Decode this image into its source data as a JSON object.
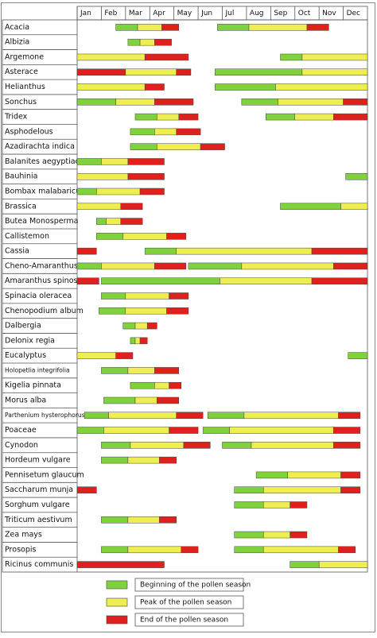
{
  "chart_data": {
    "type": "gantt",
    "months": [
      "Jan",
      "Feb",
      "Mar",
      "Apr",
      "May",
      "Jun",
      "Jul",
      "Aug",
      "Sep",
      "Oct",
      "Nov",
      "Dec"
    ],
    "xlim": [
      0,
      12
    ],
    "legend": [
      {
        "label": "Beginning of the pollen season",
        "color": "#80d23c"
      },
      {
        "label": "Peak of the pollen season",
        "color": "#eeee50"
      },
      {
        "label": "End of the pollen season",
        "color": "#e0201c"
      }
    ],
    "rows": [
      {
        "label": "Acacia",
        "segments": [
          [
            1.6,
            2.5,
            0
          ],
          [
            2.5,
            3.5,
            1
          ],
          [
            3.5,
            4.2,
            2
          ],
          [
            5.8,
            7.1,
            0
          ],
          [
            7.1,
            9.5,
            1
          ],
          [
            9.5,
            10.4,
            2
          ]
        ]
      },
      {
        "label": "Albizia",
        "segments": [
          [
            2.1,
            2.6,
            0
          ],
          [
            2.6,
            3.2,
            1
          ],
          [
            3.2,
            3.9,
            2
          ]
        ]
      },
      {
        "label": "Argemone",
        "segments": [
          [
            0,
            2.8,
            1
          ],
          [
            2.8,
            4.6,
            2
          ],
          [
            8.4,
            9.3,
            0
          ],
          [
            9.3,
            12,
            1
          ]
        ]
      },
      {
        "label": "Asterace",
        "segments": [
          [
            0,
            2.0,
            2
          ],
          [
            2.0,
            4.1,
            1
          ],
          [
            4.1,
            4.7,
            2
          ],
          [
            5.7,
            9.3,
            0
          ],
          [
            9.3,
            12,
            1
          ]
        ]
      },
      {
        "label": "Helianthus",
        "segments": [
          [
            0,
            2.8,
            1
          ],
          [
            2.8,
            3.6,
            2
          ],
          [
            5.7,
            8.2,
            0
          ],
          [
            8.2,
            12,
            1
          ]
        ]
      },
      {
        "label": "Sonchus",
        "segments": [
          [
            0,
            1.6,
            0
          ],
          [
            1.6,
            3.2,
            1
          ],
          [
            3.2,
            4.8,
            2
          ],
          [
            6.8,
            8.3,
            0
          ],
          [
            8.3,
            11.0,
            1
          ],
          [
            11.0,
            12,
            2
          ]
        ]
      },
      {
        "label": "Tridex",
        "segments": [
          [
            2.4,
            3.3,
            0
          ],
          [
            3.3,
            4.2,
            1
          ],
          [
            4.2,
            5.0,
            2
          ],
          [
            7.8,
            9.0,
            0
          ],
          [
            9.0,
            10.6,
            1
          ],
          [
            10.6,
            12,
            2
          ]
        ]
      },
      {
        "label": "Asphodelous",
        "segments": [
          [
            2.2,
            3.2,
            0
          ],
          [
            3.2,
            4.1,
            1
          ],
          [
            4.1,
            5.1,
            2
          ]
        ]
      },
      {
        "label": "Azadirachta  indica",
        "segments": [
          [
            2.2,
            3.3,
            0
          ],
          [
            3.3,
            5.1,
            1
          ],
          [
            5.1,
            6.1,
            2
          ]
        ]
      },
      {
        "label": "Balanites aegyptiaca",
        "segments": [
          [
            0,
            1.0,
            0
          ],
          [
            1.0,
            2.1,
            1
          ],
          [
            2.1,
            3.6,
            2
          ]
        ]
      },
      {
        "label": "Bauhinia",
        "segments": [
          [
            0,
            2.1,
            1
          ],
          [
            2.1,
            3.6,
            2
          ],
          [
            11.1,
            12,
            0
          ]
        ]
      },
      {
        "label": "Bombax malabaricum",
        "segments": [
          [
            0,
            0.8,
            0
          ],
          [
            0.8,
            2.6,
            1
          ],
          [
            2.6,
            3.6,
            2
          ]
        ]
      },
      {
        "label": "Brassica",
        "segments": [
          [
            0,
            1.8,
            1
          ],
          [
            1.8,
            2.7,
            2
          ],
          [
            8.4,
            10.9,
            0
          ],
          [
            10.9,
            12,
            1
          ]
        ]
      },
      {
        "label": "Butea Monosperma",
        "segments": [
          [
            0.8,
            1.2,
            0
          ],
          [
            1.2,
            1.8,
            1
          ],
          [
            1.8,
            2.7,
            2
          ]
        ]
      },
      {
        "label": "Callistemon",
        "segments": [
          [
            0.8,
            1.9,
            0
          ],
          [
            1.9,
            3.7,
            1
          ],
          [
            3.7,
            4.5,
            2
          ]
        ]
      },
      {
        "label": "Cassia",
        "segments": [
          [
            0,
            0.8,
            2
          ],
          [
            2.8,
            4.1,
            0
          ],
          [
            4.1,
            9.7,
            1
          ],
          [
            9.7,
            12,
            2
          ]
        ]
      },
      {
        "label": "Cheno-Amaranthus",
        "segments": [
          [
            0,
            1.0,
            0
          ],
          [
            1.0,
            3.2,
            1
          ],
          [
            3.2,
            4.5,
            2
          ],
          [
            4.6,
            6.8,
            0
          ],
          [
            6.8,
            10.6,
            1
          ],
          [
            10.6,
            12,
            2
          ]
        ]
      },
      {
        "label": "Amaranthus spinosus",
        "segments": [
          [
            0,
            0.9,
            2
          ],
          [
            1.0,
            5.9,
            0
          ],
          [
            5.9,
            9.7,
            1
          ],
          [
            9.7,
            12,
            2
          ]
        ]
      },
      {
        "label": "Spinacia oleracea",
        "segments": [
          [
            1.0,
            2.0,
            0
          ],
          [
            2.0,
            3.8,
            1
          ],
          [
            3.8,
            4.6,
            2
          ]
        ]
      },
      {
        "label": "Chenopodium album",
        "segments": [
          [
            0.9,
            2.0,
            0
          ],
          [
            2.0,
            3.7,
            1
          ],
          [
            3.7,
            4.6,
            2
          ]
        ]
      },
      {
        "label": "Dalbergia",
        "segments": [
          [
            1.9,
            2.4,
            0
          ],
          [
            2.4,
            2.9,
            1
          ],
          [
            2.9,
            3.3,
            2
          ]
        ]
      },
      {
        "label": "Delonix regia",
        "segments": [
          [
            2.2,
            2.4,
            0
          ],
          [
            2.4,
            2.6,
            1
          ],
          [
            2.6,
            2.9,
            2
          ]
        ]
      },
      {
        "label": "Eucalyptus",
        "segments": [
          [
            0,
            1.6,
            1
          ],
          [
            1.6,
            2.3,
            2
          ],
          [
            11.2,
            12,
            0
          ]
        ]
      },
      {
        "label": "Holopetlia integrifolia",
        "segments": [
          [
            1.0,
            2.1,
            0
          ],
          [
            2.1,
            3.2,
            1
          ],
          [
            3.2,
            4.2,
            2
          ]
        ]
      },
      {
        "label": "Kigelia pinnata",
        "segments": [
          [
            2.2,
            3.2,
            0
          ],
          [
            3.2,
            3.8,
            1
          ],
          [
            3.8,
            4.3,
            2
          ]
        ]
      },
      {
        "label": "Morus alba",
        "segments": [
          [
            1.1,
            2.4,
            0
          ],
          [
            2.4,
            3.3,
            1
          ],
          [
            3.3,
            4.2,
            2
          ]
        ]
      },
      {
        "label": "Parthenium hysterophorus",
        "segments": [
          [
            0.3,
            1.3,
            0
          ],
          [
            1.3,
            4.1,
            1
          ],
          [
            4.1,
            5.2,
            2
          ],
          [
            5.4,
            6.9,
            0
          ],
          [
            6.9,
            10.8,
            1
          ],
          [
            10.8,
            11.7,
            2
          ]
        ]
      },
      {
        "label": "Poaceae",
        "segments": [
          [
            0,
            1.1,
            0
          ],
          [
            1.1,
            3.8,
            1
          ],
          [
            3.8,
            5.0,
            2
          ],
          [
            5.2,
            6.3,
            0
          ],
          [
            6.3,
            10.6,
            1
          ],
          [
            10.6,
            11.7,
            2
          ]
        ]
      },
      {
        "label": "Cynodon",
        "segments": [
          [
            1.0,
            2.2,
            0
          ],
          [
            2.2,
            4.4,
            1
          ],
          [
            4.4,
            5.5,
            2
          ],
          [
            6.0,
            7.2,
            0
          ],
          [
            7.2,
            10.6,
            1
          ],
          [
            10.6,
            11.7,
            2
          ]
        ]
      },
      {
        "label": "Hordeum vulgare",
        "segments": [
          [
            1.0,
            2.1,
            0
          ],
          [
            2.1,
            3.4,
            1
          ],
          [
            3.4,
            4.1,
            2
          ]
        ]
      },
      {
        "label": "Pennisetum glaucum",
        "segments": [
          [
            7.4,
            8.7,
            0
          ],
          [
            8.7,
            10.9,
            1
          ],
          [
            10.9,
            11.7,
            2
          ]
        ]
      },
      {
        "label": "Saccharum munja",
        "segments": [
          [
            0,
            0.8,
            2
          ],
          [
            6.5,
            7.7,
            0
          ],
          [
            7.7,
            10.9,
            1
          ],
          [
            10.9,
            11.7,
            2
          ]
        ]
      },
      {
        "label": "Sorghum vulgare",
        "segments": [
          [
            6.5,
            7.7,
            0
          ],
          [
            7.7,
            8.8,
            1
          ],
          [
            8.8,
            9.5,
            2
          ]
        ]
      },
      {
        "label": "Triticum aestivum",
        "segments": [
          [
            1.0,
            2.1,
            0
          ],
          [
            2.1,
            3.4,
            1
          ],
          [
            3.4,
            4.1,
            2
          ]
        ]
      },
      {
        "label": "Zea mays",
        "segments": [
          [
            6.5,
            7.7,
            0
          ],
          [
            7.7,
            8.8,
            1
          ],
          [
            8.8,
            9.5,
            2
          ]
        ]
      },
      {
        "label": "Prosopis",
        "segments": [
          [
            1.0,
            2.1,
            0
          ],
          [
            2.1,
            4.3,
            1
          ],
          [
            4.3,
            5.0,
            2
          ],
          [
            6.5,
            7.7,
            0
          ],
          [
            7.7,
            10.8,
            1
          ],
          [
            10.8,
            11.5,
            2
          ]
        ]
      },
      {
        "label": "Ricinus communis",
        "segments": [
          [
            0,
            3.6,
            2
          ],
          [
            8.8,
            10.0,
            0
          ],
          [
            10.0,
            12,
            1
          ]
        ]
      }
    ]
  }
}
